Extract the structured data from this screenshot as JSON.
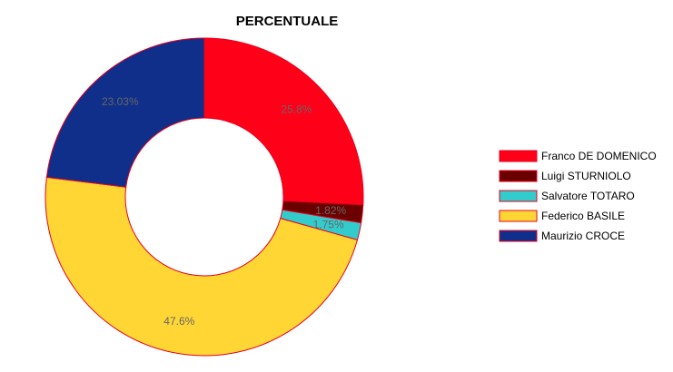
{
  "chart_data": {
    "type": "pie",
    "variant": "donut",
    "title": "PERCENTUALE",
    "legend_position": "right",
    "slice_border_color": "#e8001c",
    "categories": [
      "Franco DE DOMENICO",
      "Luigi STURNIOLO",
      "Salvatore TOTARO",
      "Federico BASILE",
      "Maurizio CROCE"
    ],
    "values": [
      25.8,
      1.82,
      1.75,
      47.6,
      23.03
    ],
    "labels": [
      "25.8%",
      "1.82%",
      "1.75%",
      "47.6%",
      "23.03%"
    ],
    "colors": [
      "#ff0019",
      "#6b0000",
      "#33cccc",
      "#ffd633",
      "#0f2f8a"
    ]
  }
}
